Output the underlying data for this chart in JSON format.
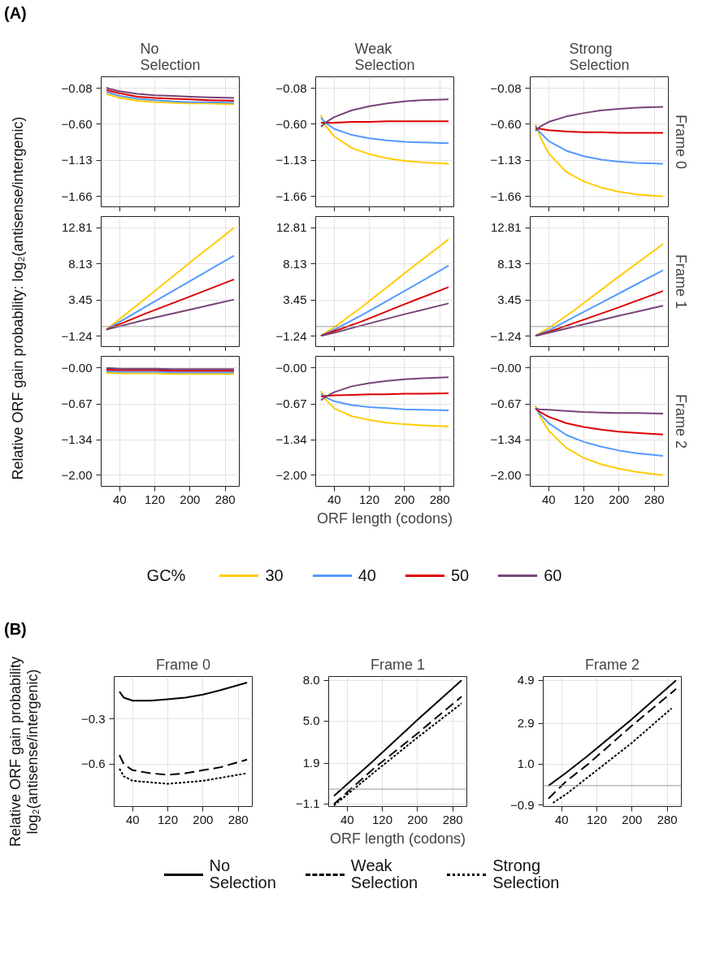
{
  "chart_data": [
    {
      "type": "line",
      "title": "No\nSelection",
      "annotations": [
        "(A)"
      ],
      "x": [
        10,
        20,
        40,
        80,
        120,
        160,
        200,
        240,
        300
      ],
      "xlim": [
        -2,
        312
      ],
      "xticks": [
        40,
        120,
        200,
        280
      ],
      "ylim": [
        -1.81,
        0.09
      ],
      "yticks": [
        {
          "value": -0.08,
          "label": "−0.08"
        },
        {
          "value": -0.6,
          "label": "−0.60"
        },
        {
          "value": -1.13,
          "label": "−1.13"
        },
        {
          "value": -1.66,
          "label": "−1.66"
        }
      ],
      "tick_labels": "y",
      "grid": true,
      "series": [
        {
          "color": "#ffcc00",
          "values": [
            -0.16,
            -0.18,
            -0.22,
            -0.26,
            -0.28,
            -0.29,
            -0.3,
            -0.3,
            -0.31
          ]
        },
        {
          "color": "#5599ff",
          "values": [
            -0.13,
            -0.15,
            -0.19,
            -0.23,
            -0.25,
            -0.27,
            -0.28,
            -0.28,
            -0.29
          ]
        },
        {
          "color": "#dd0000",
          "values": [
            -0.1,
            -0.12,
            -0.15,
            -0.2,
            -0.22,
            -0.23,
            -0.24,
            -0.25,
            -0.26
          ]
        },
        {
          "color": "#774477",
          "values": [
            -0.07,
            -0.09,
            -0.12,
            -0.16,
            -0.18,
            -0.19,
            -0.2,
            -0.21,
            -0.22
          ]
        }
      ]
    },
    {
      "type": "line",
      "title": "Weak\nSelection",
      "x": [
        10,
        20,
        40,
        80,
        120,
        160,
        200,
        240,
        300
      ],
      "xlim": [
        -2,
        312
      ],
      "xticks": [
        40,
        120,
        200,
        280
      ],
      "ylim": [
        -1.81,
        0.09
      ],
      "yticks": [
        {
          "value": -0.08,
          "label": "−0.08"
        },
        {
          "value": -0.6,
          "label": "−0.60"
        },
        {
          "value": -1.13,
          "label": "−1.13"
        },
        {
          "value": -1.66,
          "label": "−1.66"
        }
      ],
      "tick_labels": "y",
      "grid": true,
      "series": [
        {
          "color": "#ffcc00",
          "values": [
            -0.47,
            -0.62,
            -0.78,
            -0.95,
            -1.04,
            -1.1,
            -1.14,
            -1.16,
            -1.18
          ]
        },
        {
          "color": "#5599ff",
          "values": [
            -0.51,
            -0.58,
            -0.67,
            -0.76,
            -0.81,
            -0.84,
            -0.86,
            -0.87,
            -0.88
          ]
        },
        {
          "color": "#dd0000",
          "values": [
            -0.58,
            -0.58,
            -0.58,
            -0.57,
            -0.57,
            -0.56,
            -0.56,
            -0.56,
            -0.56
          ]
        },
        {
          "color": "#774477",
          "values": [
            -0.64,
            -0.58,
            -0.5,
            -0.4,
            -0.34,
            -0.3,
            -0.27,
            -0.25,
            -0.24
          ]
        }
      ]
    },
    {
      "type": "line",
      "title": "Strong\nSelection",
      "y2label": "Frame 0",
      "x": [
        10,
        20,
        40,
        80,
        120,
        160,
        200,
        240,
        300
      ],
      "xlim": [
        -2,
        312
      ],
      "xticks": [
        40,
        120,
        200,
        280
      ],
      "ylim": [
        -1.81,
        0.09
      ],
      "yticks": [
        {
          "value": -0.08,
          "label": "−0.08"
        },
        {
          "value": -0.6,
          "label": "−0.60"
        },
        {
          "value": -1.13,
          "label": "−1.13"
        },
        {
          "value": -1.66,
          "label": "−1.66"
        }
      ],
      "tick_labels": "y",
      "grid": true,
      "series": [
        {
          "color": "#ffcc00",
          "values": [
            -0.61,
            -0.78,
            -1.03,
            -1.3,
            -1.44,
            -1.53,
            -1.59,
            -1.63,
            -1.66
          ]
        },
        {
          "color": "#5599ff",
          "values": [
            -0.63,
            -0.72,
            -0.85,
            -0.99,
            -1.07,
            -1.12,
            -1.15,
            -1.17,
            -1.18
          ]
        },
        {
          "color": "#dd0000",
          "values": [
            -0.66,
            -0.67,
            -0.69,
            -0.71,
            -0.72,
            -0.72,
            -0.73,
            -0.73,
            -0.73
          ]
        },
        {
          "color": "#774477",
          "values": [
            -0.7,
            -0.64,
            -0.57,
            -0.49,
            -0.44,
            -0.4,
            -0.38,
            -0.36,
            -0.35
          ]
        }
      ]
    },
    {
      "type": "line",
      "ylabel": "Relative ORF gain probability: log₂(antisense/intergenic)",
      "x": [
        10,
        100,
        200,
        300
      ],
      "xlim": [
        -2,
        312
      ],
      "xticks": [
        40,
        120,
        200,
        280
      ],
      "ylim": [
        -2.6,
        14.26
      ],
      "yticks": [
        {
          "value": 12.81,
          "label": "12.81"
        },
        {
          "value": 8.13,
          "label": "8.13"
        },
        {
          "value": 3.45,
          "label": "3.45"
        },
        {
          "value": -1.24,
          "label": "−1.24"
        }
      ],
      "tick_labels": "y",
      "grid": true,
      "ref_lines": [
        {
          "axis": "y",
          "value": 0,
          "color": "#999999"
        }
      ],
      "series": [
        {
          "color": "#ffcc00",
          "values": [
            -0.4,
            3.7,
            8.3,
            12.8
          ]
        },
        {
          "color": "#5599ff",
          "values": [
            -0.4,
            2.6,
            5.9,
            9.2
          ]
        },
        {
          "color": "#dd0000",
          "values": [
            -0.4,
            1.7,
            3.9,
            6.1
          ]
        },
        {
          "color": "#774477",
          "values": [
            -0.4,
            0.9,
            2.2,
            3.5
          ]
        }
      ]
    },
    {
      "type": "line",
      "x": [
        10,
        40,
        100,
        200,
        300
      ],
      "xlim": [
        -2,
        312
      ],
      "xticks": [
        40,
        120,
        200,
        280
      ],
      "ylim": [
        -2.6,
        14.26
      ],
      "yticks": [
        {
          "value": 12.81,
          "label": "12.81"
        },
        {
          "value": 8.13,
          "label": "8.13"
        },
        {
          "value": 3.45,
          "label": "3.45"
        },
        {
          "value": -1.24,
          "label": "−1.24"
        }
      ],
      "tick_labels": "y",
      "grid": true,
      "ref_lines": [
        {
          "axis": "y",
          "value": 0,
          "color": "#999999"
        }
      ],
      "series": [
        {
          "color": "#ffcc00",
          "values": [
            -1.2,
            -0.1,
            2.4,
            6.9,
            11.3
          ]
        },
        {
          "color": "#5599ff",
          "values": [
            -1.2,
            -0.4,
            1.4,
            4.6,
            7.9
          ]
        },
        {
          "color": "#dd0000",
          "values": [
            -1.2,
            -0.6,
            0.6,
            2.9,
            5.1
          ]
        },
        {
          "color": "#774477",
          "values": [
            -1.2,
            -0.8,
            0.1,
            1.6,
            3.0
          ]
        }
      ]
    },
    {
      "type": "line",
      "y2label": "Frame 1",
      "x": [
        10,
        40,
        100,
        200,
        300
      ],
      "xlim": [
        -2,
        312
      ],
      "xticks": [
        40,
        120,
        200,
        280
      ],
      "ylim": [
        -2.6,
        14.26
      ],
      "yticks": [
        {
          "value": 12.81,
          "label": "12.81"
        },
        {
          "value": 8.13,
          "label": "8.13"
        },
        {
          "value": 3.45,
          "label": "3.45"
        },
        {
          "value": -1.24,
          "label": "−1.24"
        }
      ],
      "tick_labels": "y",
      "grid": true,
      "ref_lines": [
        {
          "axis": "y",
          "value": 0,
          "color": "#999999"
        }
      ],
      "series": [
        {
          "color": "#ffcc00",
          "values": [
            -1.2,
            -0.2,
            2.2,
            6.5,
            10.7
          ]
        },
        {
          "color": "#5599ff",
          "values": [
            -1.2,
            -0.5,
            1.3,
            4.3,
            7.3
          ]
        },
        {
          "color": "#dd0000",
          "values": [
            -1.2,
            -0.7,
            0.5,
            2.5,
            4.6
          ]
        },
        {
          "color": "#774477",
          "values": [
            -1.2,
            -0.8,
            0.0,
            1.4,
            2.7
          ]
        }
      ]
    },
    {
      "type": "line",
      "x": [
        10,
        20,
        40,
        80,
        120,
        160,
        200,
        240,
        300
      ],
      "xlim": [
        -2,
        312
      ],
      "xticks": [
        40,
        120,
        200,
        280
      ],
      "ylim": [
        -2.21,
        0.22
      ],
      "yticks": [
        {
          "value": 0,
          "label": "−0.00"
        },
        {
          "value": -0.67,
          "label": "−0.67"
        },
        {
          "value": -1.34,
          "label": "−1.34"
        },
        {
          "value": -2.0,
          "label": "−2.00"
        }
      ],
      "grid": true,
      "series": [
        {
          "color": "#ffcc00",
          "values": [
            -0.09,
            -0.09,
            -0.1,
            -0.1,
            -0.1,
            -0.11,
            -0.11,
            -0.11,
            -0.11
          ]
        },
        {
          "color": "#5599ff",
          "values": [
            -0.06,
            -0.06,
            -0.07,
            -0.07,
            -0.07,
            -0.08,
            -0.08,
            -0.08,
            -0.08
          ]
        },
        {
          "color": "#dd0000",
          "values": [
            -0.03,
            -0.03,
            -0.04,
            -0.04,
            -0.04,
            -0.05,
            -0.05,
            -0.05,
            -0.05
          ]
        },
        {
          "color": "#774477",
          "values": [
            0.0,
            0.0,
            -0.01,
            -0.01,
            -0.01,
            -0.02,
            -0.02,
            -0.02,
            -0.02
          ]
        }
      ]
    },
    {
      "type": "line",
      "xlabel": "ORF length (codons)",
      "legend": "bottom",
      "legend_title": "GC%",
      "x": [
        10,
        20,
        40,
        80,
        120,
        160,
        200,
        240,
        300
      ],
      "xlim": [
        -2,
        312
      ],
      "xticks": [
        40,
        120,
        200,
        280
      ],
      "ylim": [
        -2.21,
        0.22
      ],
      "yticks": [
        {
          "value": 0,
          "label": "−0.00"
        },
        {
          "value": -0.67,
          "label": "−0.67"
        },
        {
          "value": -1.34,
          "label": "−1.34"
        },
        {
          "value": -2.0,
          "label": "−2.00"
        }
      ],
      "grid": true,
      "series": [
        {
          "name": "30",
          "color": "#ffcc00",
          "values": [
            -0.43,
            -0.58,
            -0.75,
            -0.9,
            -0.97,
            -1.02,
            -1.05,
            -1.07,
            -1.09
          ]
        },
        {
          "name": "40",
          "color": "#5599ff",
          "values": [
            -0.48,
            -0.54,
            -0.62,
            -0.69,
            -0.73,
            -0.75,
            -0.77,
            -0.78,
            -0.79
          ]
        },
        {
          "name": "50",
          "color": "#dd0000",
          "values": [
            -0.53,
            -0.52,
            -0.51,
            -0.5,
            -0.49,
            -0.49,
            -0.48,
            -0.48,
            -0.47
          ]
        },
        {
          "name": "60",
          "color": "#774477",
          "values": [
            -0.6,
            -0.54,
            -0.45,
            -0.34,
            -0.28,
            -0.24,
            -0.21,
            -0.19,
            -0.17
          ]
        }
      ]
    },
    {
      "type": "line",
      "y2label": "Frame 2",
      "x": [
        10,
        20,
        40,
        80,
        120,
        160,
        200,
        240,
        300
      ],
      "xlim": [
        -2,
        312
      ],
      "xticks": [
        40,
        120,
        200,
        280
      ],
      "ylim": [
        -2.21,
        0.22
      ],
      "yticks": [
        {
          "value": 0,
          "label": "−0.00"
        },
        {
          "value": -0.67,
          "label": "−0.67"
        },
        {
          "value": -1.34,
          "label": "−1.34"
        },
        {
          "value": -2.0,
          "label": "−2.00"
        }
      ],
      "grid": true,
      "series": [
        {
          "color": "#ffcc00",
          "values": [
            -0.7,
            -0.9,
            -1.17,
            -1.49,
            -1.68,
            -1.8,
            -1.88,
            -1.94,
            -2.0
          ]
        },
        {
          "color": "#5599ff",
          "values": [
            -0.74,
            -0.86,
            -1.03,
            -1.25,
            -1.38,
            -1.47,
            -1.54,
            -1.59,
            -1.64
          ]
        },
        {
          "color": "#dd0000",
          "values": [
            -0.76,
            -0.82,
            -0.91,
            -1.03,
            -1.1,
            -1.15,
            -1.19,
            -1.21,
            -1.24
          ]
        },
        {
          "color": "#774477",
          "values": [
            -0.76,
            -0.77,
            -0.78,
            -0.8,
            -0.82,
            -0.83,
            -0.84,
            -0.84,
            -0.85
          ]
        }
      ]
    },
    {
      "type": "line",
      "title": "Frame 0",
      "annotations": [
        "(B)"
      ],
      "ylabel": "Relative ORF gain probability\nlog₂(antisense/intergenic)",
      "x": [
        10,
        20,
        40,
        80,
        120,
        160,
        200,
        240,
        300
      ],
      "xlim": [
        -2,
        312
      ],
      "xticks": [
        40,
        120,
        200,
        280
      ],
      "ylim": [
        -0.88,
        -0.02
      ],
      "yticks": [
        {
          "value": -0.3,
          "label": "−0.3"
        },
        {
          "value": -0.6,
          "label": "−0.6"
        }
      ],
      "grid": true,
      "series": [
        {
          "color": "#000000",
          "line_style": "solid",
          "values": [
            -0.12,
            -0.16,
            -0.18,
            -0.18,
            -0.17,
            -0.16,
            -0.14,
            -0.11,
            -0.06
          ]
        },
        {
          "color": "#000000",
          "line_style": "dashed",
          "values": [
            -0.54,
            -0.6,
            -0.64,
            -0.66,
            -0.67,
            -0.66,
            -0.64,
            -0.62,
            -0.57
          ]
        },
        {
          "color": "#000000",
          "line_style": "dotted",
          "values": [
            -0.63,
            -0.68,
            -0.71,
            -0.72,
            -0.73,
            -0.72,
            -0.71,
            -0.69,
            -0.66
          ]
        }
      ]
    },
    {
      "type": "line",
      "title": "Frame 1",
      "xlabel": "ORF length (codons)",
      "legend": "bottom",
      "x": [
        10,
        100,
        200,
        300
      ],
      "xlim": [
        -2,
        312
      ],
      "xticks": [
        40,
        120,
        200,
        280
      ],
      "ylim": [
        -1.28,
        8.28
      ],
      "yticks": [
        {
          "value": 8.0,
          "label": "8.0"
        },
        {
          "value": 5.0,
          "label": "5.0"
        },
        {
          "value": 1.9,
          "label": "1.9"
        },
        {
          "value": -1.1,
          "label": "−1.1"
        }
      ],
      "grid": true,
      "ref_lines": [
        {
          "axis": "y",
          "value": 0,
          "color": "#999999"
        }
      ],
      "series": [
        {
          "name": "No\nSelection",
          "color": "#000000",
          "line_style": "solid",
          "values": [
            -0.5,
            2.1,
            5.1,
            8.0
          ]
        },
        {
          "name": "Weak\nSelection",
          "color": "#000000",
          "line_style": "dashed",
          "values": [
            -1.1,
            1.5,
            4.1,
            6.8
          ]
        },
        {
          "name": "Strong\nSelection",
          "color": "#000000",
          "line_style": "dotted",
          "values": [
            -1.2,
            1.2,
            3.8,
            6.3
          ]
        }
      ]
    },
    {
      "type": "line",
      "title": "Frame 2",
      "xlim": [
        -2,
        312
      ],
      "xticks": [
        40,
        120,
        200,
        280
      ],
      "ylim": [
        -0.97,
        5.08
      ],
      "yticks": [
        {
          "value": 4.9,
          "label": "4.9"
        },
        {
          "value": 2.9,
          "label": "2.9"
        },
        {
          "value": 1.0,
          "label": "1.0"
        },
        {
          "value": -0.9,
          "label": "−0.9"
        }
      ],
      "grid": true,
      "ref_lines": [
        {
          "axis": "y",
          "value": 0,
          "color": "#999999"
        }
      ],
      "series": [
        {
          "color": "#000000",
          "line_style": "solid",
          "x": [
            10,
            50,
            100,
            200,
            300
          ],
          "values": [
            0.0,
            0.6,
            1.4,
            3.1,
            4.9
          ]
        },
        {
          "color": "#000000",
          "line_style": "dashed",
          "x": [
            10,
            50,
            100,
            200,
            300
          ],
          "values": [
            -0.6,
            0.2,
            1.0,
            2.8,
            4.5
          ]
        },
        {
          "color": "#000000",
          "line_style": "dotted",
          "x": [
            20,
            50,
            100,
            200,
            290
          ],
          "values": [
            -0.8,
            -0.4,
            0.4,
            2.0,
            3.6
          ]
        }
      ]
    }
  ]
}
